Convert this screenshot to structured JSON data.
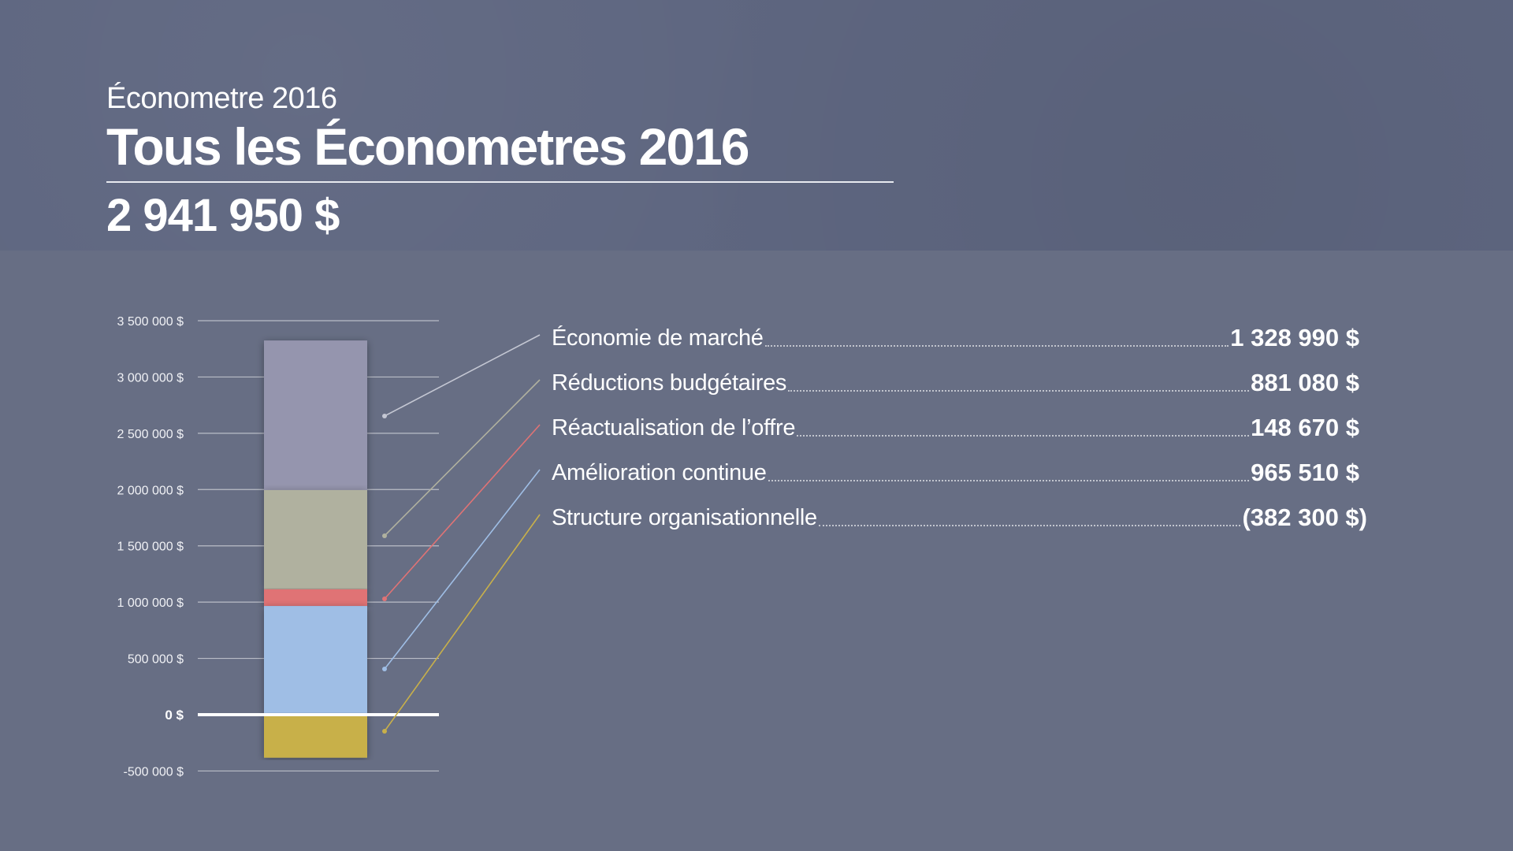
{
  "header": {
    "subtitle": "Économetre 2016",
    "title": "Tous les Économetres 2016",
    "total": "2 941 950 $"
  },
  "colors": {
    "background": "#676e84",
    "header_band": "#5e6680",
    "economie_de_marche": "#9595ae",
    "reductions_budgetaires": "#b0b19f",
    "reactualisation": "#e07375",
    "amelioration": "#9fbee5",
    "structure": "#c8b04a"
  },
  "chart_data": {
    "type": "bar",
    "stacked": true,
    "ylim": [
      -500000,
      3500000
    ],
    "yticks": [
      3500000,
      3000000,
      2500000,
      2000000,
      1500000,
      1000000,
      500000,
      0,
      -500000
    ],
    "ytick_labels": [
      "3 500 000 $",
      "3 000 000 $",
      "2 500 000 $",
      "2 000 000 $",
      "1 500 000 $",
      "1 000 000 $",
      "500 000 $",
      "0 $",
      "-500 000 $"
    ],
    "grid": true,
    "series": [
      {
        "name": "Économie de marché",
        "value": 1328990,
        "value_label": "1 328 990 $",
        "color": "#9595ae"
      },
      {
        "name": "Réductions budgétaires",
        "value": 881080,
        "value_label": "881 080 $",
        "color": "#b0b19f"
      },
      {
        "name": "Réactualisation de l’offre",
        "value": 148670,
        "value_label": "148 670 $",
        "color": "#e07375"
      },
      {
        "name": "Amélioration continue",
        "value": 965510,
        "value_label": "965 510 $",
        "color": "#9fbee5"
      },
      {
        "name": "Structure organisationnelle",
        "value": -382300,
        "value_label": "(382 300 $)",
        "color": "#c8b04a"
      }
    ]
  }
}
